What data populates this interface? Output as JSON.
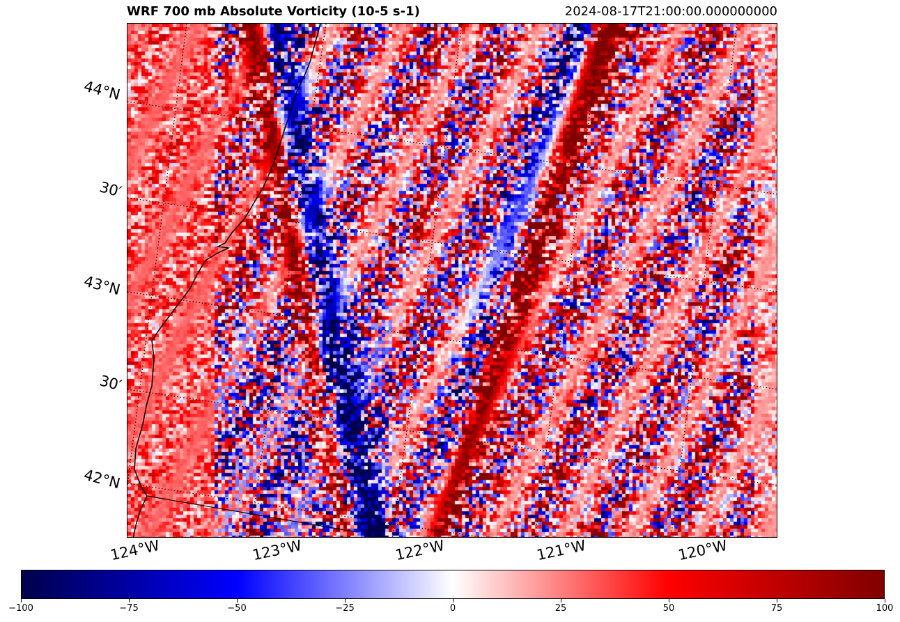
{
  "title": "WRF 700 mb Absolute Vorticity (10-5 s-1)",
  "valid_time": "2024-08-17T21:00:00.000000000",
  "map": {
    "projection": "rotated (Lambert conformal)",
    "lat_labels": [
      "44°N",
      "30′",
      "43°N",
      "30′",
      "42°N"
    ],
    "lon_labels": [
      "124°W",
      "123°W",
      "122°W",
      "121°W",
      "120°W"
    ],
    "gridlines": "dotted",
    "coastline": true
  },
  "colorbar": {
    "colormap": "seismic",
    "min": -100,
    "max": 100,
    "ticks": [
      -100,
      -75,
      -50,
      -25,
      0,
      25,
      50,
      75,
      100
    ],
    "tick_labels": [
      "−100",
      "−75",
      "−50",
      "−25",
      "0",
      "25",
      "50",
      "75",
      "100"
    ],
    "colors": {
      "low": "#00004c",
      "mid_low": "#0000ff",
      "zero": "#ffffff",
      "mid_high": "#ff0000",
      "high": "#800000"
    }
  }
}
